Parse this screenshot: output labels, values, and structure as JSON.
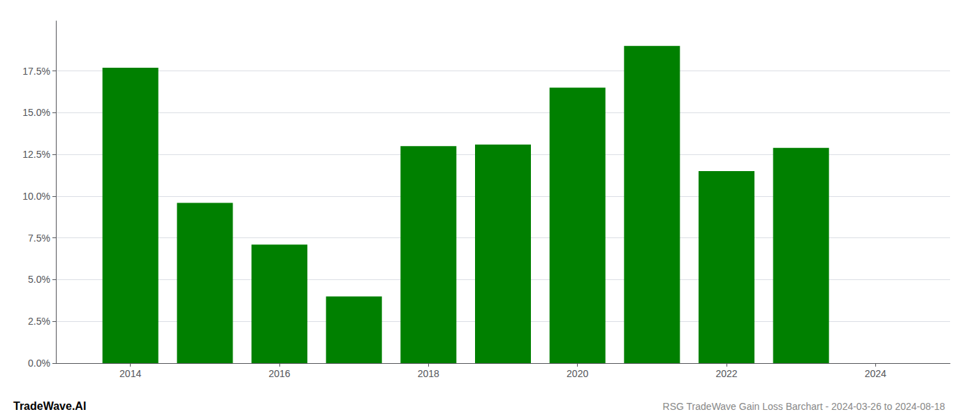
{
  "chart_data": {
    "type": "bar",
    "title": "RSG TradeWave Gain Loss Barchart - 2024-03-26 to 2024-08-18",
    "annotations": [
      "TradeWave.AI"
    ],
    "x": [
      2014,
      2015,
      2016,
      2017,
      2018,
      2019,
      2020,
      2021,
      2022,
      2023,
      2024
    ],
    "values": [
      0.177,
      0.096,
      0.071,
      0.04,
      0.13,
      0.131,
      0.165,
      0.19,
      0.115,
      0.129,
      0.0
    ],
    "color": "#008000",
    "xlim": [
      2013,
      2025
    ],
    "xticks": [
      2014,
      2016,
      2018,
      2020,
      2022,
      2024
    ],
    "ylim": [
      0.0,
      0.205
    ],
    "yticks": [
      {
        "value": 0.0,
        "label": "0.0%"
      },
      {
        "value": 0.025,
        "label": "2.5%"
      },
      {
        "value": 0.05,
        "label": "5.0%"
      },
      {
        "value": 0.075,
        "label": "7.5%"
      },
      {
        "value": 0.1,
        "label": "10.0%"
      },
      {
        "value": 0.125,
        "label": "12.5%"
      },
      {
        "value": 0.15,
        "label": "15.0%"
      },
      {
        "value": 0.175,
        "label": "17.5%"
      }
    ],
    "grid": true
  }
}
